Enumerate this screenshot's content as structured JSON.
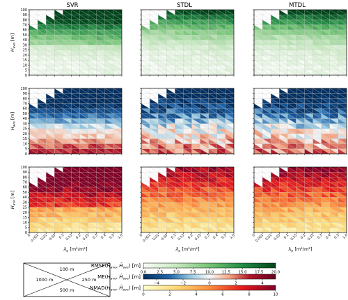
{
  "chart_data": {
    "type": "heatmap",
    "column_titles": [
      "SVR",
      "STDL",
      "MTDL"
    ],
    "ylabel": "H_ave [m]",
    "xlabel": "λ_p [m²/m²]",
    "x_ticks": [
      "0",
      "0.001",
      "0.01",
      "0.05",
      "0.1",
      "0.15",
      "0.2",
      "0.25",
      "0.3",
      "0.4",
      "0.5",
      "1.0"
    ],
    "y_ticks": [
      "0",
      "5",
      "10",
      "15",
      "20",
      "25",
      "30",
      "40",
      "50",
      "60",
      "70",
      "80",
      "90",
      "100"
    ],
    "rows": [
      {
        "metric": "RMSE",
        "label_plain": "RMSE(H_ave, Ĥ_ave)",
        "unit": "[m]",
        "colormap": "Greens",
        "range": [
          0,
          20
        ],
        "cbar_ticks": [
          "0.0",
          "2.5",
          "5.0",
          "7.5",
          "10.0",
          "12.5",
          "15.0",
          "17.5",
          "20.0"
        ]
      },
      {
        "metric": "ME",
        "label_plain": "ME(H_ave, Ĥ_ave)",
        "unit": "[m]",
        "colormap": "RdBu_r",
        "range": [
          -5,
          5
        ],
        "cbar_ticks": [
          "−4",
          "−2",
          "0",
          "2",
          "4"
        ]
      },
      {
        "metric": "NMAD",
        "label_plain": "NMAD(H_ave, Ĥ_ave)",
        "unit": "[m]",
        "colormap": "YlOrRd",
        "range": [
          0,
          10
        ],
        "cbar_ticks": [
          "0",
          "2",
          "4",
          "6",
          "8",
          "10"
        ]
      }
    ],
    "legend_box": {
      "top": "100 m",
      "left": "1000 m",
      "right": "250 m",
      "bottom": "500 m"
    },
    "grid": true
  },
  "labels": {
    "col0": "SVR",
    "col1": "STDL",
    "col2": "MTDL",
    "ylabel_sym": "H",
    "ylabel_sub": "ave",
    "ylabel_unit": " [m]",
    "xlabel_sym": "λ",
    "xlabel_sub": "p",
    "xlabel_unit": " [m²/m²]",
    "legend_top": "100 m",
    "legend_left": "1000 m",
    "legend_right": "250 m",
    "legend_bottom": "500 m",
    "cb_rmse_name": "RMSE",
    "cb_me_name": "ME",
    "cb_nmad_name": "NMAD",
    "cb_unit": "[m]"
  }
}
